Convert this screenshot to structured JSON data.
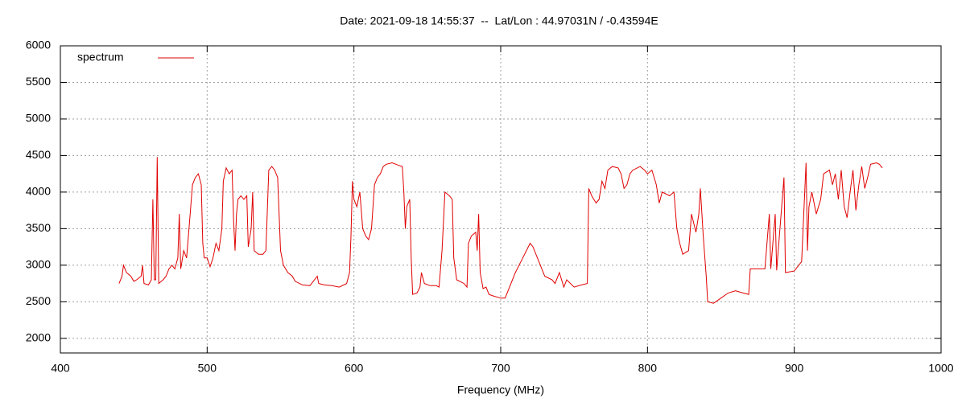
{
  "chart_data": {
    "type": "line",
    "title": "Date: 2021-09-18 14:55:37  --  Lat/Lon : 44.97031N / -0.43594E",
    "x_label": "Frequency (MHz)",
    "xlim": [
      400,
      1000
    ],
    "xticks": [
      400,
      500,
      600,
      700,
      800,
      900,
      1000
    ],
    "ylim": [
      1800,
      6000
    ],
    "yticks": [
      2000,
      2500,
      3000,
      3500,
      4000,
      4500,
      5000,
      5500,
      6000
    ],
    "grid": true,
    "legend": "top left",
    "x": [
      440,
      442,
      443,
      445,
      448,
      450,
      452,
      455,
      456,
      457,
      460,
      462,
      463,
      464,
      465,
      466,
      467,
      470,
      472,
      474,
      476,
      478,
      480,
      481,
      482,
      484,
      486,
      488,
      490,
      492,
      494,
      496,
      497,
      498,
      500,
      502,
      504,
      506,
      508,
      510,
      511,
      513,
      515,
      517,
      518,
      519,
      520,
      521,
      523,
      525,
      527,
      528,
      530,
      531,
      532,
      535,
      538,
      540,
      542,
      544,
      546,
      548,
      549,
      550,
      552,
      555,
      558,
      560,
      565,
      570,
      575,
      576,
      580,
      585,
      590,
      595,
      597,
      598,
      599,
      600,
      602,
      604,
      606,
      608,
      610,
      612,
      614,
      616,
      618,
      620,
      622,
      626,
      630,
      633,
      634,
      635,
      636,
      638,
      639,
      640,
      643,
      645,
      646,
      648,
      652,
      656,
      658,
      660,
      662,
      665,
      667,
      668,
      670,
      675,
      677,
      678,
      680,
      683,
      684,
      685,
      686,
      688,
      690,
      692,
      695,
      700,
      703,
      705,
      710,
      715,
      720,
      722,
      725,
      730,
      735,
      737,
      740,
      743,
      745,
      750,
      755,
      759,
      760,
      762,
      765,
      767,
      769,
      771,
      773,
      776,
      780,
      782,
      784,
      786,
      788,
      790,
      795,
      798,
      800,
      803,
      806,
      808,
      810,
      815,
      818,
      820,
      822,
      824,
      828,
      830,
      833,
      835,
      836,
      838,
      840,
      841,
      845,
      850,
      855,
      860,
      865,
      869,
      870,
      875,
      880,
      883,
      884,
      887,
      888,
      893,
      894,
      900,
      905,
      908,
      909,
      910,
      912,
      915,
      918,
      920,
      924,
      926,
      928,
      930,
      932,
      934,
      936,
      938,
      940,
      942,
      944,
      946,
      948,
      950,
      952,
      956,
      958,
      960
    ],
    "series": [
      {
        "name": "spectrum",
        "color": "#e00000",
        "values": [
          2750,
          2850,
          3000,
          2900,
          2850,
          2780,
          2800,
          2850,
          3000,
          2750,
          2730,
          2800,
          3900,
          2800,
          2800,
          4480,
          2750,
          2800,
          2850,
          2950,
          3000,
          2950,
          3100,
          3700,
          2950,
          3200,
          3100,
          3600,
          4100,
          4200,
          4250,
          4100,
          3300,
          3100,
          3100,
          2980,
          3100,
          3300,
          3200,
          3500,
          4150,
          4330,
          4250,
          4300,
          3600,
          3200,
          3700,
          3900,
          3950,
          3900,
          3950,
          3250,
          3500,
          4000,
          3200,
          3150,
          3150,
          3200,
          4300,
          4350,
          4300,
          4200,
          3700,
          3200,
          3000,
          2900,
          2850,
          2780,
          2730,
          2720,
          2850,
          2750,
          2730,
          2720,
          2700,
          2750,
          2900,
          3400,
          4150,
          3900,
          3800,
          4000,
          3500,
          3400,
          3350,
          3500,
          4100,
          4200,
          4250,
          4350,
          4380,
          4400,
          4370,
          4350,
          4000,
          3500,
          3800,
          3900,
          3100,
          2600,
          2620,
          2700,
          2900,
          2750,
          2720,
          2720,
          2700,
          3200,
          4000,
          3950,
          3900,
          3100,
          2800,
          2750,
          2700,
          3300,
          3400,
          3450,
          3200,
          3700,
          2900,
          2680,
          2700,
          2600,
          2580,
          2550,
          2550,
          2650,
          2900,
          3100,
          3300,
          3250,
          3100,
          2850,
          2800,
          2750,
          2900,
          2700,
          2800,
          2700,
          2730,
          2750,
          4050,
          3950,
          3850,
          3900,
          4150,
          4050,
          4300,
          4350,
          4330,
          4250,
          4050,
          4100,
          4250,
          4300,
          4350,
          4300,
          4250,
          4300,
          4100,
          3850,
          4000,
          3950,
          4000,
          3500,
          3300,
          3150,
          3200,
          3700,
          3450,
          3700,
          4050,
          3400,
          2850,
          2500,
          2480,
          2550,
          2620,
          2650,
          2620,
          2600,
          2950,
          2950,
          2950,
          3700,
          2950,
          3700,
          2930,
          4200,
          2900,
          2920,
          3050,
          4400,
          3200,
          3800,
          4000,
          3700,
          3900,
          4250,
          4300,
          4100,
          4250,
          3900,
          4300,
          3800,
          3650,
          4000,
          4300,
          3750,
          4100,
          4350,
          4050,
          4200,
          4380,
          4400,
          4380,
          4330
        ]
      }
    ]
  }
}
